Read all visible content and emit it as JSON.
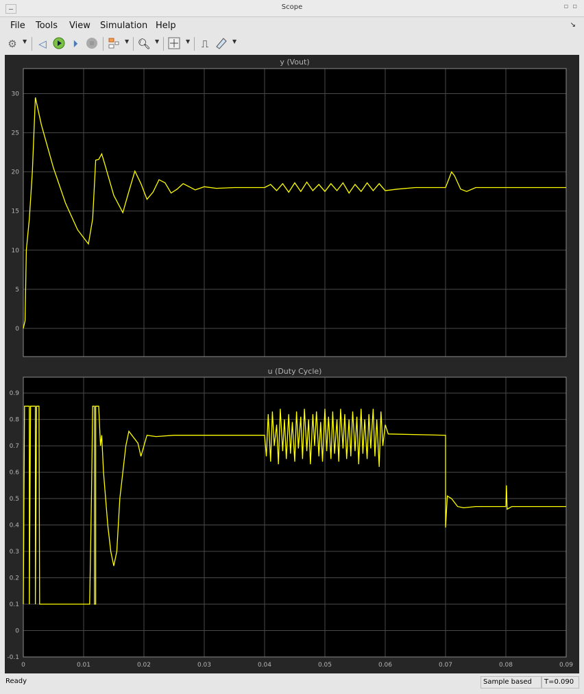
{
  "window": {
    "title": "Scope"
  },
  "menu": {
    "items": [
      "File",
      "Tools",
      "View",
      "Simulation",
      "Help"
    ]
  },
  "toolbar": {
    "icons": [
      "gear-icon",
      "step-back-icon",
      "run-icon",
      "step-forward-icon",
      "stop-icon",
      "signal-selector-icon",
      "zoom-in-icon",
      "fit-axes-icon",
      "triggers-icon",
      "measurements-icon"
    ]
  },
  "status": {
    "left": "Ready",
    "mode": "Sample based",
    "time": "T=0.090"
  },
  "colors": {
    "trace": "#ffff00",
    "axes_bg": "#000000",
    "figure_bg": "#262626",
    "grid": "#4a4a4a",
    "text": "#b4b4b4"
  },
  "chart_data": [
    {
      "type": "line",
      "title": "y (Vout)",
      "xlim": [
        0,
        0.09
      ],
      "ylim": [
        -3.6,
        33.2
      ],
      "grid": true,
      "xticks": [],
      "yticks": [
        0,
        5,
        10,
        15,
        20,
        25,
        30
      ],
      "points": [
        [
          0,
          0
        ],
        [
          0.0003,
          1
        ],
        [
          0.0005,
          10
        ],
        [
          0.001,
          14
        ],
        [
          0.0015,
          20
        ],
        [
          0.002,
          29.5
        ],
        [
          0.003,
          26
        ],
        [
          0.005,
          20.5
        ],
        [
          0.007,
          16
        ],
        [
          0.009,
          12.6
        ],
        [
          0.0108,
          10.8
        ],
        [
          0.0115,
          14
        ],
        [
          0.012,
          21.5
        ],
        [
          0.0125,
          21.6
        ],
        [
          0.013,
          22.3
        ],
        [
          0.0135,
          21
        ],
        [
          0.015,
          17
        ],
        [
          0.0165,
          14.8
        ],
        [
          0.0175,
          17.5
        ],
        [
          0.0185,
          20.1
        ],
        [
          0.0195,
          18.5
        ],
        [
          0.0205,
          16.5
        ],
        [
          0.0215,
          17.4
        ],
        [
          0.0225,
          19
        ],
        [
          0.0235,
          18.6
        ],
        [
          0.0245,
          17.3
        ],
        [
          0.0255,
          17.8
        ],
        [
          0.0265,
          18.5
        ],
        [
          0.0275,
          18.1
        ],
        [
          0.0285,
          17.7
        ],
        [
          0.03,
          18.1
        ],
        [
          0.032,
          17.9
        ],
        [
          0.035,
          18
        ],
        [
          0.04,
          18
        ],
        [
          0.041,
          18.4
        ],
        [
          0.042,
          17.6
        ],
        [
          0.043,
          18.5
        ],
        [
          0.044,
          17.4
        ],
        [
          0.045,
          18.6
        ],
        [
          0.046,
          17.5
        ],
        [
          0.047,
          18.7
        ],
        [
          0.048,
          17.6
        ],
        [
          0.049,
          18.4
        ],
        [
          0.05,
          17.5
        ],
        [
          0.051,
          18.5
        ],
        [
          0.052,
          17.6
        ],
        [
          0.053,
          18.6
        ],
        [
          0.054,
          17.3
        ],
        [
          0.055,
          18.4
        ],
        [
          0.056,
          17.5
        ],
        [
          0.057,
          18.6
        ],
        [
          0.058,
          17.6
        ],
        [
          0.059,
          18.5
        ],
        [
          0.06,
          17.6
        ],
        [
          0.062,
          17.8
        ],
        [
          0.065,
          18
        ],
        [
          0.07,
          18
        ],
        [
          0.0705,
          19
        ],
        [
          0.071,
          20
        ],
        [
          0.0715,
          19.5
        ],
        [
          0.0725,
          17.8
        ],
        [
          0.0735,
          17.5
        ],
        [
          0.075,
          18
        ],
        [
          0.09,
          18
        ]
      ]
    },
    {
      "type": "line",
      "title": "u (Duty Cycle)",
      "xlim": [
        0,
        0.09
      ],
      "ylim": [
        -0.1,
        0.96
      ],
      "grid": true,
      "xticks": [
        0,
        0.01,
        0.02,
        0.03,
        0.04,
        0.05,
        0.06,
        0.07,
        0.08,
        0.09
      ],
      "yticks": [
        -0.1,
        0,
        0.1,
        0.2,
        0.3,
        0.4,
        0.5,
        0.6,
        0.7,
        0.8,
        0.9
      ],
      "points": [
        [
          0,
          0.1
        ],
        [
          0.0002,
          0.85
        ],
        [
          0.001,
          0.85
        ],
        [
          0.001,
          0.1
        ],
        [
          0.0012,
          0.85
        ],
        [
          0.002,
          0.85
        ],
        [
          0.002,
          0.1
        ],
        [
          0.0022,
          0.85
        ],
        [
          0.0026,
          0.85
        ],
        [
          0.0027,
          0.1
        ],
        [
          0.011,
          0.1
        ],
        [
          0.0113,
          0.5
        ],
        [
          0.0115,
          0.85
        ],
        [
          0.0118,
          0.85
        ],
        [
          0.0118,
          0.1
        ],
        [
          0.012,
          0.1
        ],
        [
          0.012,
          0.85
        ],
        [
          0.0125,
          0.85
        ],
        [
          0.0128,
          0.7
        ],
        [
          0.013,
          0.74
        ],
        [
          0.0133,
          0.6
        ],
        [
          0.014,
          0.4
        ],
        [
          0.0145,
          0.3
        ],
        [
          0.015,
          0.245
        ],
        [
          0.0155,
          0.3
        ],
        [
          0.016,
          0.5
        ],
        [
          0.017,
          0.7
        ],
        [
          0.0175,
          0.755
        ],
        [
          0.018,
          0.74
        ],
        [
          0.019,
          0.71
        ],
        [
          0.0195,
          0.66
        ],
        [
          0.02,
          0.7
        ],
        [
          0.0205,
          0.74
        ],
        [
          0.022,
          0.735
        ],
        [
          0.025,
          0.74
        ],
        [
          0.03,
          0.74
        ],
        [
          0.04,
          0.74
        ],
        [
          0.0403,
          0.66
        ],
        [
          0.0406,
          0.82
        ],
        [
          0.041,
          0.64
        ],
        [
          0.0413,
          0.83
        ],
        [
          0.0416,
          0.7
        ],
        [
          0.042,
          0.78
        ],
        [
          0.0423,
          0.63
        ],
        [
          0.0426,
          0.84
        ],
        [
          0.043,
          0.68
        ],
        [
          0.0433,
          0.8
        ],
        [
          0.0436,
          0.65
        ],
        [
          0.044,
          0.82
        ],
        [
          0.0443,
          0.67
        ],
        [
          0.0446,
          0.79
        ],
        [
          0.045,
          0.64
        ],
        [
          0.0453,
          0.83
        ],
        [
          0.0456,
          0.69
        ],
        [
          0.046,
          0.81
        ],
        [
          0.0463,
          0.65
        ],
        [
          0.0466,
          0.84
        ],
        [
          0.047,
          0.68
        ],
        [
          0.0473,
          0.8
        ],
        [
          0.0476,
          0.63
        ],
        [
          0.048,
          0.82
        ],
        [
          0.0483,
          0.7
        ],
        [
          0.0486,
          0.83
        ],
        [
          0.049,
          0.66
        ],
        [
          0.0493,
          0.79
        ],
        [
          0.0496,
          0.64
        ],
        [
          0.05,
          0.84
        ],
        [
          0.0503,
          0.68
        ],
        [
          0.0506,
          0.81
        ],
        [
          0.051,
          0.65
        ],
        [
          0.0513,
          0.83
        ],
        [
          0.0516,
          0.67
        ],
        [
          0.052,
          0.8
        ],
        [
          0.0523,
          0.64
        ],
        [
          0.0526,
          0.84
        ],
        [
          0.053,
          0.69
        ],
        [
          0.0533,
          0.82
        ],
        [
          0.0536,
          0.65
        ],
        [
          0.054,
          0.8
        ],
        [
          0.0543,
          0.66
        ],
        [
          0.0546,
          0.83
        ],
        [
          0.055,
          0.68
        ],
        [
          0.0553,
          0.81
        ],
        [
          0.0556,
          0.63
        ],
        [
          0.056,
          0.84
        ],
        [
          0.0563,
          0.67
        ],
        [
          0.0566,
          0.8
        ],
        [
          0.057,
          0.65
        ],
        [
          0.0573,
          0.82
        ],
        [
          0.0576,
          0.69
        ],
        [
          0.058,
          0.84
        ],
        [
          0.0583,
          0.66
        ],
        [
          0.0586,
          0.8
        ],
        [
          0.059,
          0.62
        ],
        [
          0.0593,
          0.83
        ],
        [
          0.0596,
          0.7
        ],
        [
          0.06,
          0.78
        ],
        [
          0.0605,
          0.745
        ],
        [
          0.07,
          0.74
        ],
        [
          0.07,
          0.39
        ],
        [
          0.0703,
          0.51
        ],
        [
          0.071,
          0.5
        ],
        [
          0.072,
          0.47
        ],
        [
          0.073,
          0.465
        ],
        [
          0.075,
          0.47
        ],
        [
          0.08,
          0.47
        ],
        [
          0.0801,
          0.55
        ],
        [
          0.0802,
          0.46
        ],
        [
          0.081,
          0.47
        ],
        [
          0.09,
          0.47
        ]
      ]
    }
  ]
}
